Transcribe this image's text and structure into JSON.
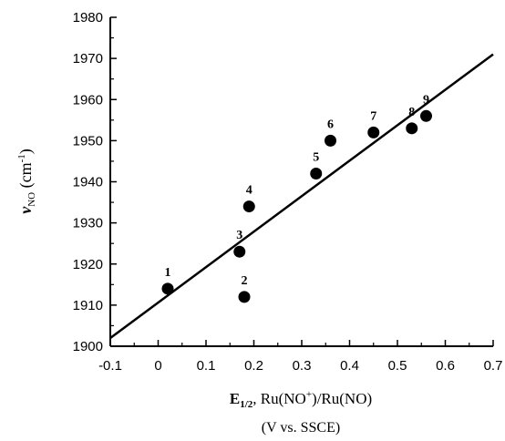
{
  "chart_data": {
    "type": "scatter",
    "title": "",
    "xlabel": {
      "line1_main": "E",
      "line1_sub": "1/2",
      "line1_rest": ", Ru(NO",
      "line1_sup": "+",
      "line1_end": ")/Ru(NO)",
      "line2": "(V vs. SSCE)"
    },
    "ylabel": {
      "main": "ν",
      "sub": "NO",
      "unit_open": " (cm",
      "unit_sup": "-1",
      "unit_close": ")"
    },
    "xlim": [
      -0.1,
      0.7
    ],
    "ylim": [
      1900,
      1980
    ],
    "x_ticks": [
      "-0.1",
      "0",
      "0.1",
      "0.2",
      "0.3",
      "0.4",
      "0.5",
      "0.6",
      "0.7"
    ],
    "y_ticks": [
      "1900",
      "1910",
      "1920",
      "1930",
      "1940",
      "1950",
      "1960",
      "1970",
      "1980"
    ],
    "grid": false,
    "series": [
      {
        "points": [
          {
            "label": "1",
            "x": 0.02,
            "y": 1914
          },
          {
            "label": "2",
            "x": 0.18,
            "y": 1912
          },
          {
            "label": "3",
            "x": 0.17,
            "y": 1923
          },
          {
            "label": "4",
            "x": 0.19,
            "y": 1934
          },
          {
            "label": "5",
            "x": 0.33,
            "y": 1942
          },
          {
            "label": "6",
            "x": 0.36,
            "y": 1950
          },
          {
            "label": "7",
            "x": 0.45,
            "y": 1952
          },
          {
            "label": "8",
            "x": 0.53,
            "y": 1953
          },
          {
            "label": "9",
            "x": 0.56,
            "y": 1956
          }
        ]
      }
    ],
    "fit_line": {
      "x": [
        -0.1,
        0.7
      ],
      "y": [
        1902,
        1971
      ]
    }
  }
}
